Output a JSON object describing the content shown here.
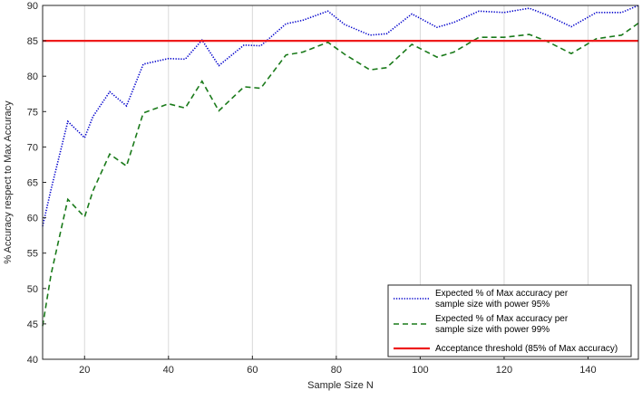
{
  "chart_data": {
    "type": "line",
    "title": "",
    "xlabel": "Sample Size N",
    "ylabel": "% Accuracy respect to Max Accuracy",
    "xlim": [
      10,
      152
    ],
    "ylim": [
      40,
      90
    ],
    "xticks": [
      20,
      40,
      60,
      80,
      100,
      120,
      140
    ],
    "yticks": [
      40,
      45,
      50,
      55,
      60,
      65,
      70,
      75,
      80,
      85,
      90
    ],
    "grid": "x-only",
    "legend_position": "bottom-right",
    "x": [
      10,
      12,
      16,
      20,
      22,
      26,
      30,
      34,
      40,
      44,
      48,
      52,
      58,
      62,
      68,
      72,
      78,
      82,
      88,
      92,
      98,
      104,
      108,
      114,
      120,
      126,
      130,
      136,
      142,
      148,
      152
    ],
    "series": [
      {
        "name": "Expected % of Max accuracy per sample size with power 95%",
        "name_lines": [
          "Expected % of Max accuracy per",
          "sample size with power 95%"
        ],
        "color": "#0000cc",
        "style": "dotted",
        "values": [
          58.8,
          64.0,
          73.6,
          71.3,
          74.3,
          77.8,
          75.8,
          81.7,
          82.5,
          82.4,
          85.1,
          81.5,
          84.4,
          84.3,
          87.4,
          87.9,
          89.2,
          87.3,
          85.8,
          86.0,
          88.8,
          86.9,
          87.6,
          89.2,
          89.0,
          89.6,
          88.7,
          87.0,
          89.0,
          89.0,
          90.0
        ]
      },
      {
        "name": "Expected % of Max accuracy per sample size with power 99%",
        "name_lines": [
          "Expected % of Max accuracy per",
          "sample size with power 99%"
        ],
        "color": "#1a7a1a",
        "style": "dashed",
        "values": [
          44.7,
          52.0,
          62.6,
          60.1,
          63.8,
          69.0,
          67.3,
          74.8,
          76.1,
          75.5,
          79.3,
          75.1,
          78.5,
          78.3,
          83.0,
          83.4,
          84.8,
          83.1,
          80.9,
          81.2,
          84.5,
          82.7,
          83.4,
          85.5,
          85.5,
          85.9,
          85.0,
          83.2,
          85.3,
          85.8,
          87.5
        ]
      }
    ],
    "reference_line": {
      "label": "Acceptance threshold (85% of Max accuracy)",
      "value": 85,
      "color": "#ee1c1c"
    }
  }
}
